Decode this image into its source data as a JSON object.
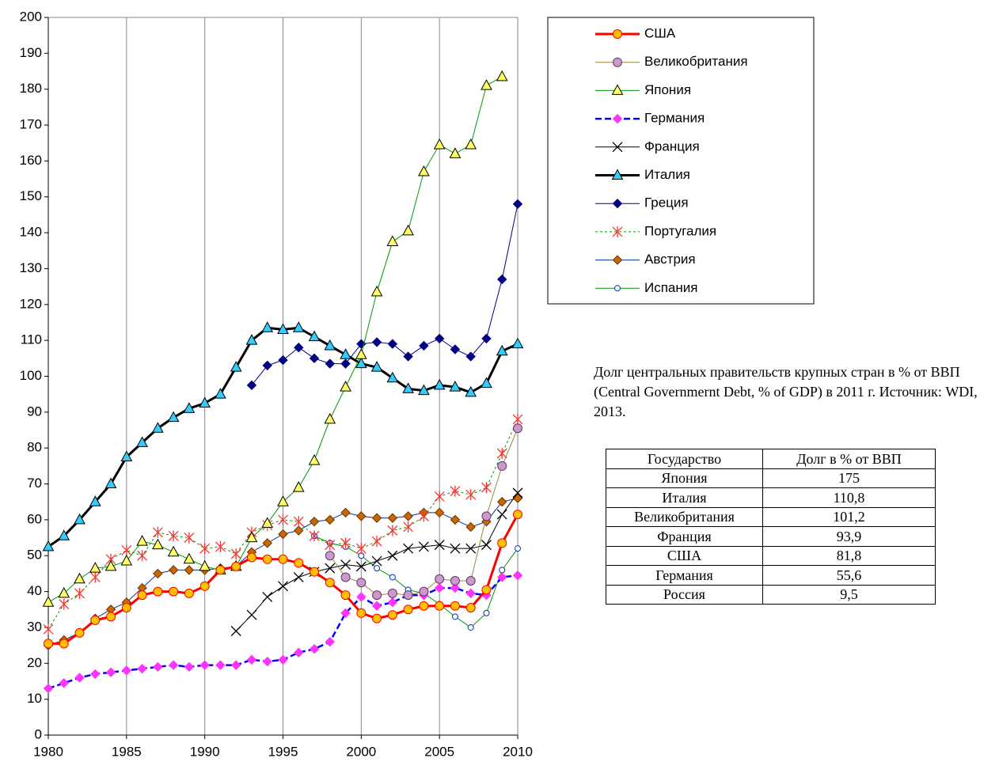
{
  "chart_data": {
    "type": "line",
    "x": [
      1980,
      1981,
      1982,
      1983,
      1984,
      1985,
      1986,
      1987,
      1988,
      1989,
      1990,
      1991,
      1992,
      1993,
      1994,
      1995,
      1996,
      1997,
      1998,
      1999,
      2000,
      2001,
      2002,
      2003,
      2004,
      2005,
      2006,
      2007,
      2008,
      2009,
      2010
    ],
    "xlim": [
      1980,
      2010
    ],
    "xticks": [
      1980,
      1985,
      1990,
      1995,
      2000,
      2005,
      2010
    ],
    "ylim": [
      0,
      200
    ],
    "yticks": [
      0,
      10,
      20,
      30,
      40,
      50,
      60,
      70,
      80,
      90,
      100,
      110,
      120,
      130,
      140,
      150,
      160,
      170,
      180,
      190,
      200
    ],
    "grid": "x",
    "legend": "right",
    "series": [
      {
        "name": "США",
        "color": "#ff0000",
        "line_width": 3,
        "dash": "none",
        "marker": "circle",
        "marker_fill": "#ffc000",
        "marker_stroke": "#ff0000",
        "values": [
          25.5,
          25.5,
          28.5,
          32,
          33,
          35.5,
          39,
          40,
          40,
          39.5,
          41.5,
          46,
          47,
          49.5,
          49,
          49,
          48,
          45.5,
          42.5,
          39,
          34,
          32.5,
          33.5,
          35,
          36,
          36,
          36,
          35.5,
          40.5,
          53.5,
          61.5
        ]
      },
      {
        "name": "Великобритания",
        "color": "#998833",
        "line_width": 1,
        "dash": "none",
        "marker": "circle",
        "marker_fill": "#cc99cc",
        "marker_stroke": "#663366",
        "values": [
          null,
          null,
          null,
          null,
          null,
          null,
          null,
          null,
          null,
          null,
          null,
          null,
          null,
          null,
          null,
          null,
          null,
          null,
          50,
          44,
          42.5,
          39,
          39.5,
          39,
          40,
          43.5,
          43,
          43,
          61,
          75,
          85.5
        ]
      },
      {
        "name": "Япония",
        "color": "#009900",
        "line_width": 1,
        "dash": "none",
        "marker": "triangle",
        "marker_fill": "#ffff66",
        "marker_stroke": "#000000",
        "values": [
          37,
          39.5,
          43.5,
          46.5,
          47,
          48.5,
          54,
          53,
          51,
          49,
          47,
          46,
          47,
          55,
          59,
          65,
          69,
          76.5,
          88,
          97,
          106,
          123.5,
          137.5,
          140.5,
          157,
          164.5,
          162,
          164.5,
          181,
          183.5,
          null
        ]
      },
      {
        "name": "Германия",
        "color": "#0000ff",
        "line_width": 2.5,
        "dash": "8 4",
        "marker": "diamond",
        "marker_fill": "#ff33ff",
        "marker_stroke": "#ff33ff",
        "values": [
          13,
          14.5,
          16,
          17,
          17.5,
          18,
          18.5,
          19,
          19.5,
          19,
          19.5,
          19.5,
          19.5,
          21,
          20.5,
          21,
          23,
          24,
          26,
          34,
          38.5,
          36,
          37,
          39,
          39,
          41,
          41,
          39.5,
          39,
          44,
          44.5
        ]
      },
      {
        "name": "Франция",
        "color": "#000000",
        "line_width": 1,
        "dash": "none",
        "marker": "x",
        "marker_fill": "none",
        "marker_stroke": "#000000",
        "values": [
          null,
          null,
          null,
          null,
          null,
          null,
          null,
          null,
          null,
          null,
          null,
          null,
          29,
          33.5,
          38.5,
          41.5,
          44,
          45.5,
          46.5,
          47.5,
          47,
          48.5,
          50,
          52,
          52.5,
          53,
          52,
          52,
          53,
          61.5,
          67.5
        ]
      },
      {
        "name": "Италия",
        "color": "#000000",
        "line_width": 3,
        "dash": "none",
        "marker": "triangle",
        "marker_fill": "#33ccff",
        "marker_stroke": "#000000",
        "values": [
          52.5,
          55.5,
          60,
          65,
          70,
          77.5,
          81.5,
          85.5,
          88.5,
          91,
          92.5,
          95,
          102.5,
          110,
          113.5,
          113,
          113.5,
          111,
          108.5,
          106,
          103.5,
          102.5,
          99.5,
          96.5,
          96,
          97.5,
          97,
          95.5,
          98,
          107,
          109
        ]
      },
      {
        "name": "Греция",
        "color": "#000080",
        "line_width": 1,
        "dash": "none",
        "marker": "diamond",
        "marker_fill": "#000080",
        "marker_stroke": "#000080",
        "values": [
          null,
          null,
          null,
          null,
          null,
          null,
          null,
          null,
          null,
          null,
          null,
          null,
          null,
          97.5,
          103,
          104.5,
          108,
          105,
          103.5,
          103.5,
          109,
          109.5,
          109,
          105.5,
          108.5,
          110.5,
          107.5,
          105.5,
          110.5,
          127,
          148
        ]
      },
      {
        "name": "Португалия",
        "color": "#009900",
        "line_width": 1,
        "dash": "3 3",
        "marker": "asterisk",
        "marker_fill": "none",
        "marker_stroke": "#ff3333",
        "values": [
          29.5,
          36.5,
          39.5,
          44,
          49,
          51.5,
          50,
          56.5,
          55.5,
          55,
          52,
          52.5,
          50.5,
          56.5,
          58.5,
          60,
          59.5,
          55.5,
          53,
          53.5,
          52,
          54,
          57,
          58,
          61,
          66.5,
          68,
          67,
          69,
          78.5,
          88
        ]
      },
      {
        "name": "Австрия",
        "color": "#003399",
        "line_width": 1,
        "dash": "none",
        "marker": "diamond",
        "marker_fill": "#cc6600",
        "marker_stroke": "#663300",
        "values": [
          25,
          26.5,
          28.5,
          32.5,
          35,
          37,
          41,
          45,
          46,
          46,
          46,
          46.5,
          47,
          51,
          53.5,
          56,
          57,
          59.5,
          60,
          62,
          61,
          60.5,
          60.5,
          61,
          62,
          62,
          60,
          58,
          59.5,
          65,
          66
        ]
      },
      {
        "name": "Испания",
        "color": "#009900",
        "line_width": 1,
        "dash": "none",
        "marker": "circle-small",
        "marker_fill": "#ffffff",
        "marker_stroke": "#0033cc",
        "values": [
          null,
          null,
          null,
          null,
          null,
          null,
          null,
          null,
          null,
          null,
          null,
          null,
          null,
          null,
          null,
          null,
          null,
          55.5,
          53.5,
          52.5,
          50,
          46.5,
          44,
          40.5,
          39.5,
          36.5,
          33,
          30,
          34,
          46,
          52
        ]
      }
    ]
  },
  "caption": "Долг центральных правительств крупных стран в % от ВВП (Central Governmernt Debt, % of GDP) в 2011 г. Источник: WDI, 2013.",
  "table": {
    "columns": [
      "Государство",
      "Долг в % от ВВП"
    ],
    "rows": [
      [
        "Япония",
        "175"
      ],
      [
        "Италия",
        "110,8"
      ],
      [
        "Великобритания",
        "101,2"
      ],
      [
        "Франция",
        "93,9"
      ],
      [
        "США",
        "81,8"
      ],
      [
        "Германия",
        "55,6"
      ],
      [
        "Россия",
        "9,5"
      ]
    ]
  }
}
